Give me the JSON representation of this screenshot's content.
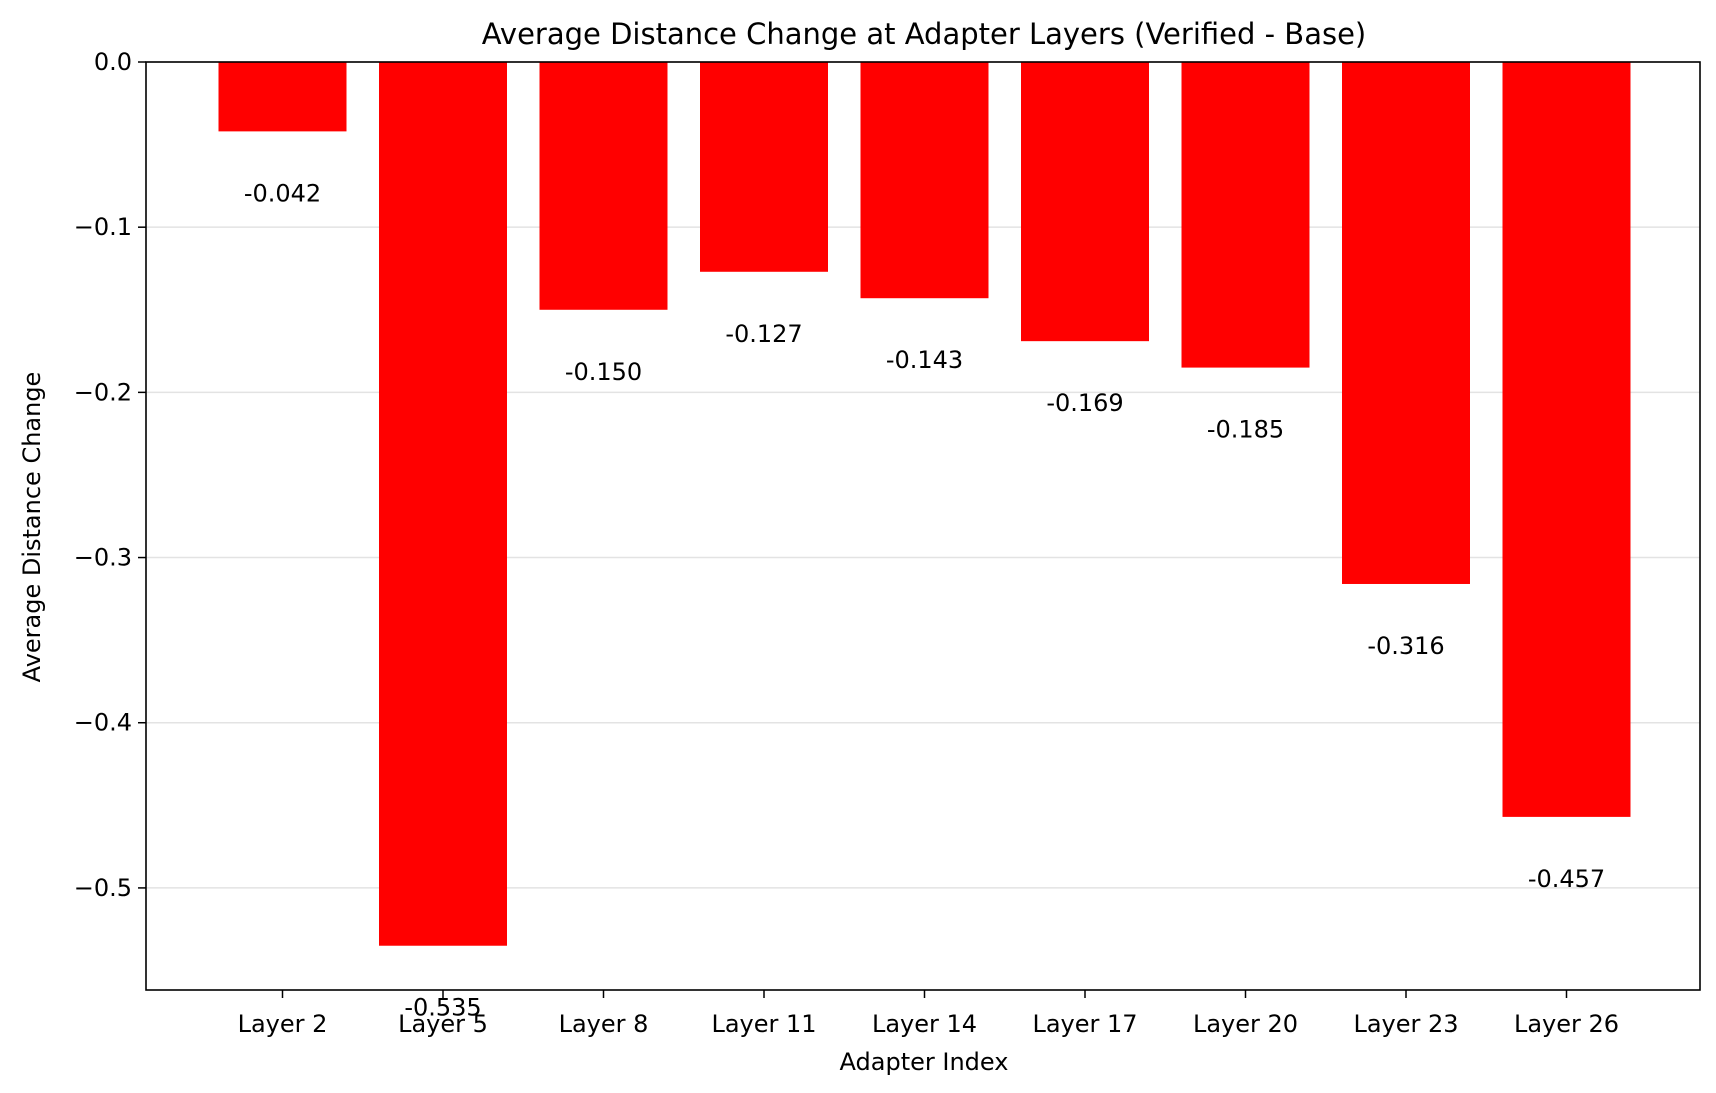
{
  "chart_data": {
    "type": "bar",
    "title": "Average Distance Change at Adapter Layers (Verified - Base)",
    "xlabel": "Adapter Index",
    "ylabel": "Average Distance Change",
    "categories": [
      "Layer 2",
      "Layer 5",
      "Layer 8",
      "Layer 11",
      "Layer 14",
      "Layer 17",
      "Layer 20",
      "Layer 23",
      "Layer 26"
    ],
    "values": [
      -0.042,
      -0.535,
      -0.15,
      -0.127,
      -0.143,
      -0.169,
      -0.185,
      -0.316,
      -0.457
    ],
    "data_labels": [
      "-0.042",
      "-0.535",
      "-0.150",
      "-0.127",
      "-0.143",
      "-0.169",
      "-0.185",
      "-0.316",
      "-0.457"
    ],
    "yticks": [
      0.0,
      -0.1,
      -0.2,
      -0.3,
      -0.4,
      -0.5
    ],
    "ytick_labels": [
      "0.0",
      "−0.1",
      "−0.2",
      "−0.3",
      "−0.4",
      "−0.5"
    ],
    "ylim": [
      -0.5618,
      0.0
    ],
    "bar_color": "#ff0000",
    "grid": "horizontal",
    "legend": "none"
  }
}
